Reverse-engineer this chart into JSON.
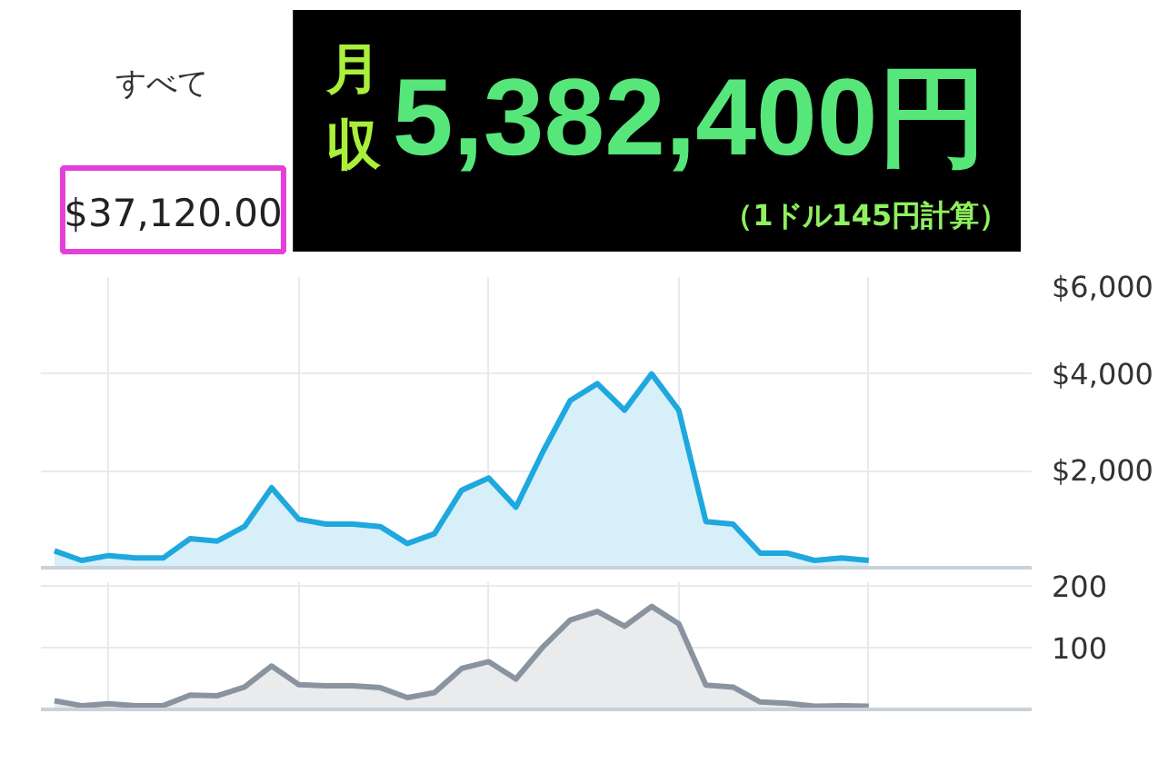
{
  "chart_data": [
    {
      "type": "other",
      "annotations": [
        "すべて",
        "$37,120.00",
        "月収",
        "5,382,400円",
        "（1ドル145円計算）"
      ]
    },
    {
      "type": "area",
      "categories": [
        null,
        null,
        null,
        null,
        null,
        null,
        null,
        null,
        null,
        null,
        null,
        null,
        null,
        null,
        null,
        null,
        null,
        null,
        null,
        null,
        null,
        null,
        null,
        null,
        null,
        null,
        null,
        null,
        null,
        null,
        null
      ],
      "series": [
        {
          "color": "#1ea8de",
          "values": [
            350,
            150,
            250,
            200,
            200,
            600,
            550,
            850,
            1650,
            1000,
            900,
            900,
            850,
            500,
            700,
            1600,
            1850,
            1250,
            2400,
            3450,
            3800,
            3250,
            4000,
            3250,
            950,
            900,
            300,
            300,
            150,
            200,
            150
          ]
        }
      ],
      "ylim": [
        0,
        6000
      ],
      "yticks": [
        {
          "value": 2000,
          "label": "$2,000"
        },
        {
          "value": 4000,
          "label": "$4,000"
        },
        {
          "value": 6000,
          "label": "$6,000"
        }
      ],
      "grid": true,
      "tick_labels": "y"
    },
    {
      "type": "area",
      "categories": [
        null,
        null,
        null,
        null,
        null,
        null,
        null,
        null,
        null,
        null,
        null,
        null,
        null,
        null,
        null,
        null,
        null,
        null,
        null,
        null,
        null,
        null,
        null,
        null,
        null,
        null,
        null,
        null,
        null,
        null,
        null
      ],
      "series": [
        {
          "color": "#8a949f",
          "values": [
            14,
            6,
            9,
            6,
            6,
            23,
            22,
            36,
            70,
            40,
            38,
            38,
            35,
            19,
            27,
            66,
            77,
            49,
            101,
            144,
            158,
            134,
            166,
            138,
            39,
            36,
            12,
            10,
            5,
            6,
            5
          ]
        }
      ],
      "ylim": [
        0,
        205
      ],
      "yticks": [
        100,
        200
      ],
      "grid": true,
      "tick_labels": "y"
    }
  ]
}
